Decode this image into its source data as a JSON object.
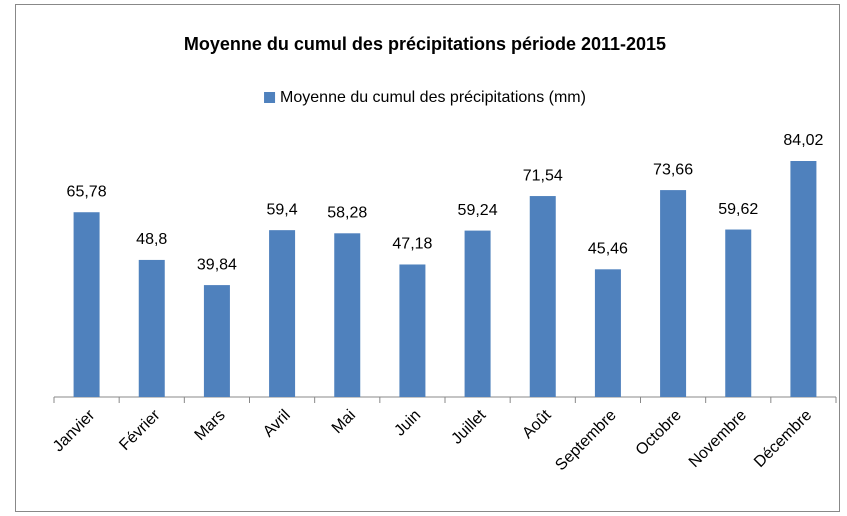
{
  "chart_data": {
    "type": "bar",
    "title": "Moyenne du cumul des précipitations période 2011-2015",
    "categories": [
      "Janvier",
      "Février",
      "Mars",
      "Avril",
      "Mai",
      "Juin",
      "Juillet",
      "Août",
      "Septembre",
      "Octobre",
      "Novembre",
      "Décembre"
    ],
    "series": [
      {
        "name": "Moyenne du cumul des précipitations (mm)",
        "color": "#4f81bd",
        "values": [
          65.78,
          48.8,
          39.84,
          59.4,
          58.28,
          47.18,
          59.24,
          71.54,
          45.46,
          73.66,
          59.62,
          84.02
        ],
        "value_labels": [
          "65,78",
          "48,8",
          "39,84",
          "59,4",
          "58,28",
          "47,18",
          "59,24",
          "71,54",
          "45,46",
          "73,66",
          "59,62",
          "84,02"
        ]
      }
    ],
    "legend": "top"
  }
}
